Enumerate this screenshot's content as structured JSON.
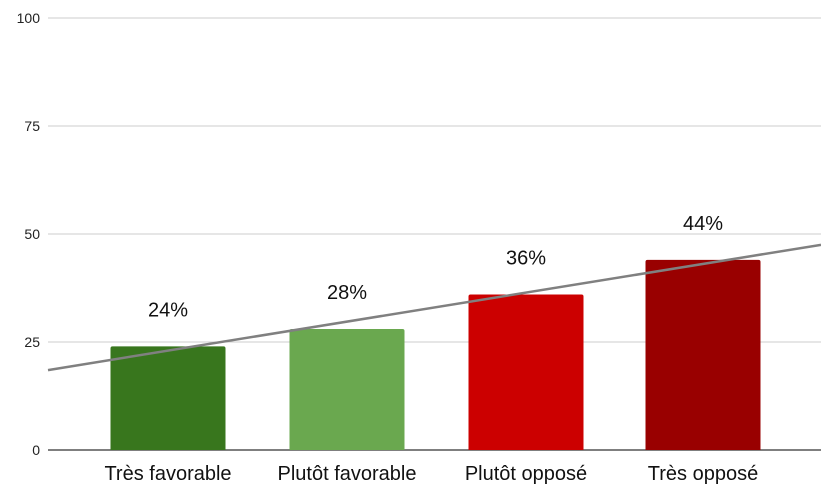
{
  "chart_data": {
    "type": "bar",
    "categories": [
      "Très favorable",
      "Plutôt favorable",
      "Plutôt opposé",
      "Très opposé"
    ],
    "values": [
      24,
      28,
      36,
      44
    ],
    "data_labels": [
      "24%",
      "28%",
      "36%",
      "44%"
    ],
    "colors": [
      "#38761d",
      "#6aa84f",
      "#cc0000",
      "#990000"
    ],
    "ylim": [
      0,
      100
    ],
    "yticks": [
      0,
      25,
      50,
      75,
      100
    ],
    "ytick_labels": [
      "0",
      "25",
      "50",
      "75",
      "100"
    ],
    "grid": true,
    "trendline": {
      "type": "linear",
      "color": "#808080",
      "start_value": 18.5,
      "end_value": 47.5
    },
    "title": "",
    "xlabel": "",
    "ylabel": ""
  }
}
